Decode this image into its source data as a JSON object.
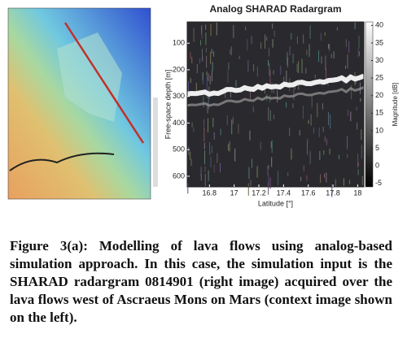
{
  "chart_data": {
    "type": "image",
    "title": "Analog SHARAD Radargram",
    "xlabel": "Latitude [°]",
    "ylabel": "Free-space depth [m]",
    "colorbar_label": "Magnitude [dB]",
    "xlim": [
      16.62,
      18.05
    ],
    "xticks": [
      16.8,
      17,
      17.2,
      17.4,
      17.6,
      17.8,
      18
    ],
    "ylim": [
      640,
      20
    ],
    "yticks": [
      100,
      200,
      300,
      400,
      500,
      600
    ],
    "clim": [
      -6,
      41
    ],
    "cticks": [
      40,
      35,
      30,
      25,
      20,
      15,
      10,
      5,
      0,
      -5
    ]
  },
  "caption": "Figure 3(a): Modelling of lava flows using analog-based simulation approach. In this case, the simulation input is the SHARAD radargram 0814901 (right image) acquired over the lava flows west of Ascraeus Mons on Mars (context image shown on the left)."
}
